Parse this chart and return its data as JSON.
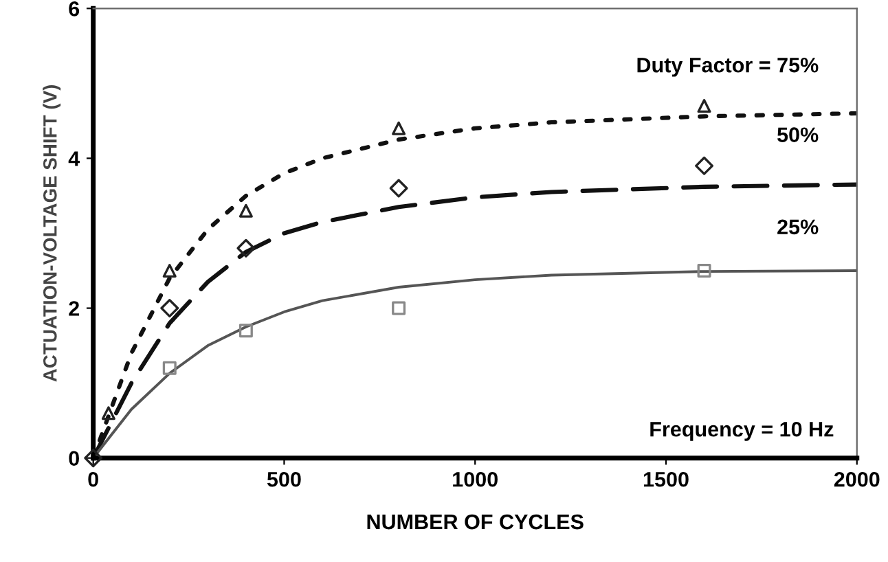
{
  "chart_data": {
    "type": "line",
    "xlabel": "NUMBER OF CYCLES",
    "ylabel": "ACTUATION-VOLTAGE SHIFT (V)",
    "xlim": [
      0,
      2000
    ],
    "xticks": [
      0,
      500,
      1000,
      1500,
      2000
    ],
    "ylim": [
      0,
      6
    ],
    "yticks": [
      0,
      2,
      4,
      6
    ],
    "grid": false,
    "legend": false,
    "series": [
      {
        "type": "scatter",
        "marker": "triangle",
        "color": "#222222",
        "x": [
          40,
          200,
          400,
          800,
          1600
        ],
        "values": [
          0.6,
          2.5,
          3.3,
          4.4,
          4.7
        ]
      },
      {
        "type": "scatter",
        "marker": "diamond",
        "color": "#222222",
        "x": [
          0,
          200,
          400,
          800,
          1600
        ],
        "values": [
          0,
          2.0,
          2.8,
          3.6,
          3.9
        ]
      },
      {
        "type": "scatter",
        "marker": "square",
        "color": "#888888",
        "x": [
          200,
          400,
          800,
          1600
        ],
        "values": [
          1.2,
          1.7,
          2.0,
          2.5
        ]
      },
      {
        "line_style": "dotted",
        "color": "#111111",
        "x": [
          0,
          100,
          200,
          300,
          400,
          500,
          600,
          800,
          1000,
          1200,
          1600,
          2000
        ],
        "values": [
          0,
          1.4,
          2.4,
          3.05,
          3.5,
          3.8,
          4.0,
          4.25,
          4.4,
          4.48,
          4.56,
          4.6
        ]
      },
      {
        "line_style": "dashed",
        "color": "#111111",
        "x": [
          0,
          100,
          200,
          300,
          400,
          500,
          600,
          800,
          1000,
          1200,
          1600,
          2000
        ],
        "values": [
          0,
          1.0,
          1.8,
          2.35,
          2.75,
          3.0,
          3.15,
          3.35,
          3.48,
          3.55,
          3.62,
          3.65
        ]
      },
      {
        "line_style": "solid",
        "color": "#555555",
        "x": [
          0,
          100,
          200,
          300,
          400,
          500,
          600,
          800,
          1000,
          1200,
          1600,
          2000
        ],
        "values": [
          0,
          0.65,
          1.13,
          1.5,
          1.75,
          1.95,
          2.1,
          2.28,
          2.38,
          2.44,
          2.49,
          2.5
        ]
      }
    ],
    "annotations": [
      "Duty Factor = 75%",
      "50%",
      "25%",
      "Frequency = 10 Hz"
    ]
  }
}
